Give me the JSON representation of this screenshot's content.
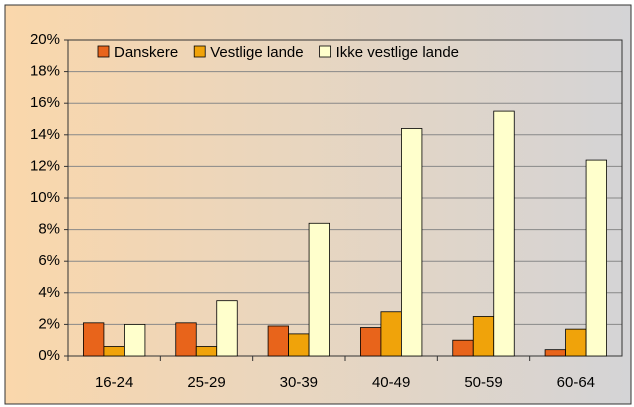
{
  "chart_data": {
    "type": "bar",
    "categories": [
      "16-24",
      "25-29",
      "30-39",
      "40-49",
      "50-59",
      "60-64"
    ],
    "series": [
      {
        "name": "Danskere",
        "color": "#e8641b",
        "values": [
          2.1,
          2.1,
          1.9,
          1.8,
          1.0,
          0.4
        ]
      },
      {
        "name": "Vestlige lande",
        "color": "#f0a30a",
        "values": [
          0.6,
          0.6,
          1.4,
          2.8,
          2.5,
          1.7
        ]
      },
      {
        "name": "Ikke vestlige lande",
        "color": "#ffffcc",
        "values": [
          2.0,
          3.5,
          8.4,
          14.4,
          15.5,
          12.4
        ]
      }
    ],
    "ylim": [
      0,
      20
    ],
    "yticks": [
      {
        "value": 0,
        "label": "0%"
      },
      {
        "value": 2,
        "label": "2%"
      },
      {
        "value": 4,
        "label": "4%"
      },
      {
        "value": 6,
        "label": "6%"
      },
      {
        "value": 8,
        "label": "8%"
      },
      {
        "value": 10,
        "label": "10%"
      },
      {
        "value": 12,
        "label": "12%"
      },
      {
        "value": 14,
        "label": "14%"
      },
      {
        "value": 16,
        "label": "16%"
      },
      {
        "value": 18,
        "label": "18%"
      },
      {
        "value": 20,
        "label": "20%"
      }
    ],
    "grid": true,
    "legend": "top-left"
  }
}
